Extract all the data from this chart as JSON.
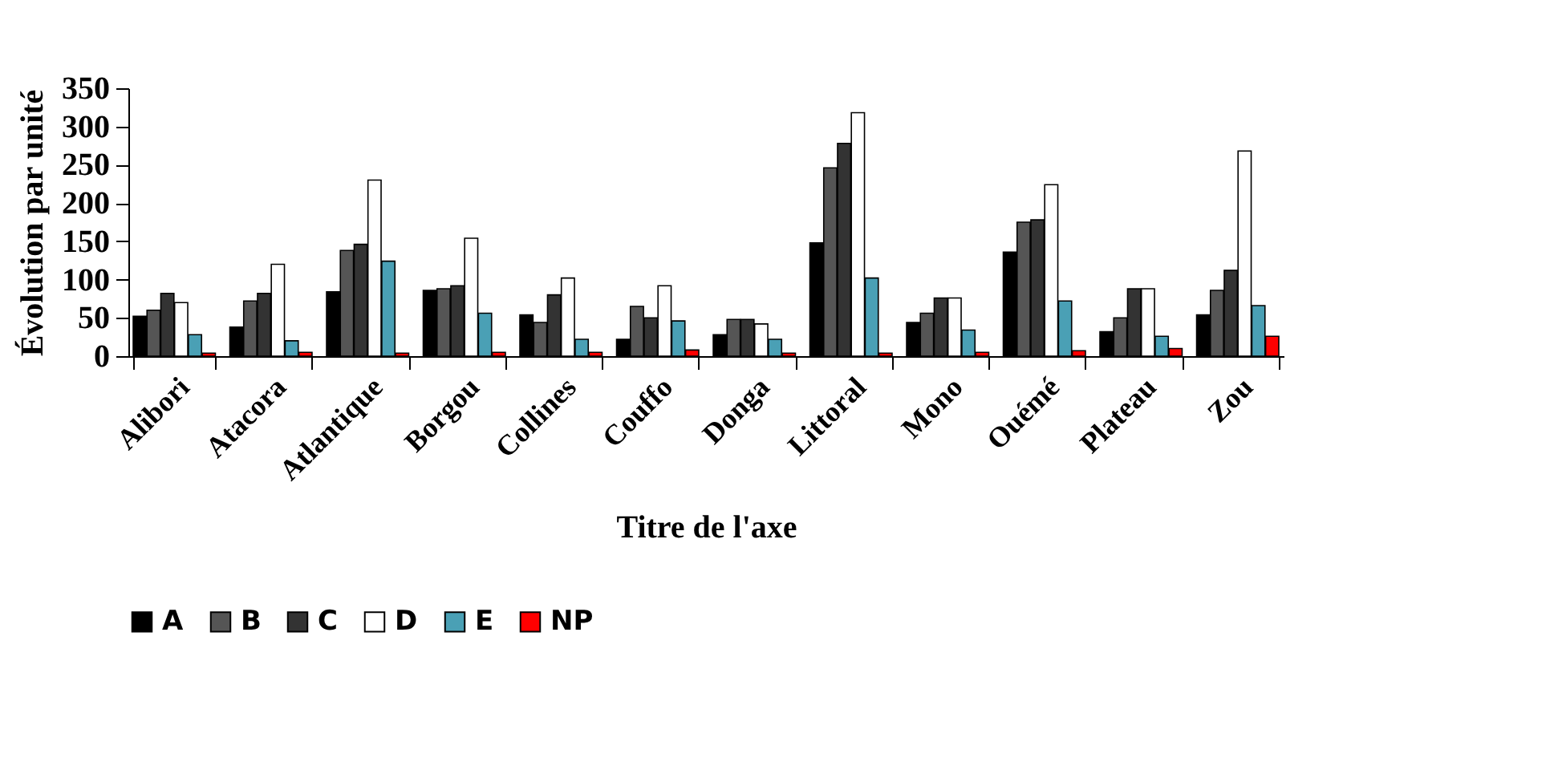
{
  "chart_data": {
    "type": "bar",
    "xlabel": "Titre de l'axe",
    "ylabel": "Évolution par unité",
    "categories": [
      "Alibori",
      "Atacora",
      "Atlantique",
      "Borgou",
      "Collines",
      "Couffo",
      "Donga",
      "Littoral",
      "Mono",
      "Ouémé",
      "Plateau",
      "Zou"
    ],
    "series": [
      {
        "name": "A",
        "color": "#000000",
        "values": [
          52,
          38,
          84,
          86,
          54,
          22,
          28,
          148,
          44,
          136,
          32,
          54
        ]
      },
      {
        "name": "B",
        "color": "#555555",
        "values": [
          60,
          72,
          138,
          88,
          44,
          65,
          48,
          246,
          56,
          175,
          50,
          86
        ]
      },
      {
        "name": "C",
        "color": "#333333",
        "values": [
          82,
          82,
          146,
          92,
          80,
          50,
          48,
          278,
          76,
          178,
          88,
          112
        ]
      },
      {
        "name": "D",
        "color": "#ffffff",
        "values": [
          70,
          120,
          230,
          154,
          102,
          92,
          42,
          318,
          76,
          224,
          88,
          268
        ]
      },
      {
        "name": "E",
        "color": "#4aa0b5",
        "values": [
          28,
          20,
          124,
          56,
          22,
          46,
          22,
          102,
          34,
          72,
          26,
          66
        ]
      },
      {
        "name": "NP",
        "color": "#ff0000",
        "values": [
          4,
          5,
          4,
          5,
          5,
          8,
          4,
          4,
          5,
          7,
          10,
          26
        ]
      }
    ],
    "ylim": [
      0,
      350
    ],
    "yticks": [
      0,
      50,
      100,
      150,
      200,
      250,
      300,
      350
    ],
    "grid": false,
    "legend": "bottom"
  }
}
